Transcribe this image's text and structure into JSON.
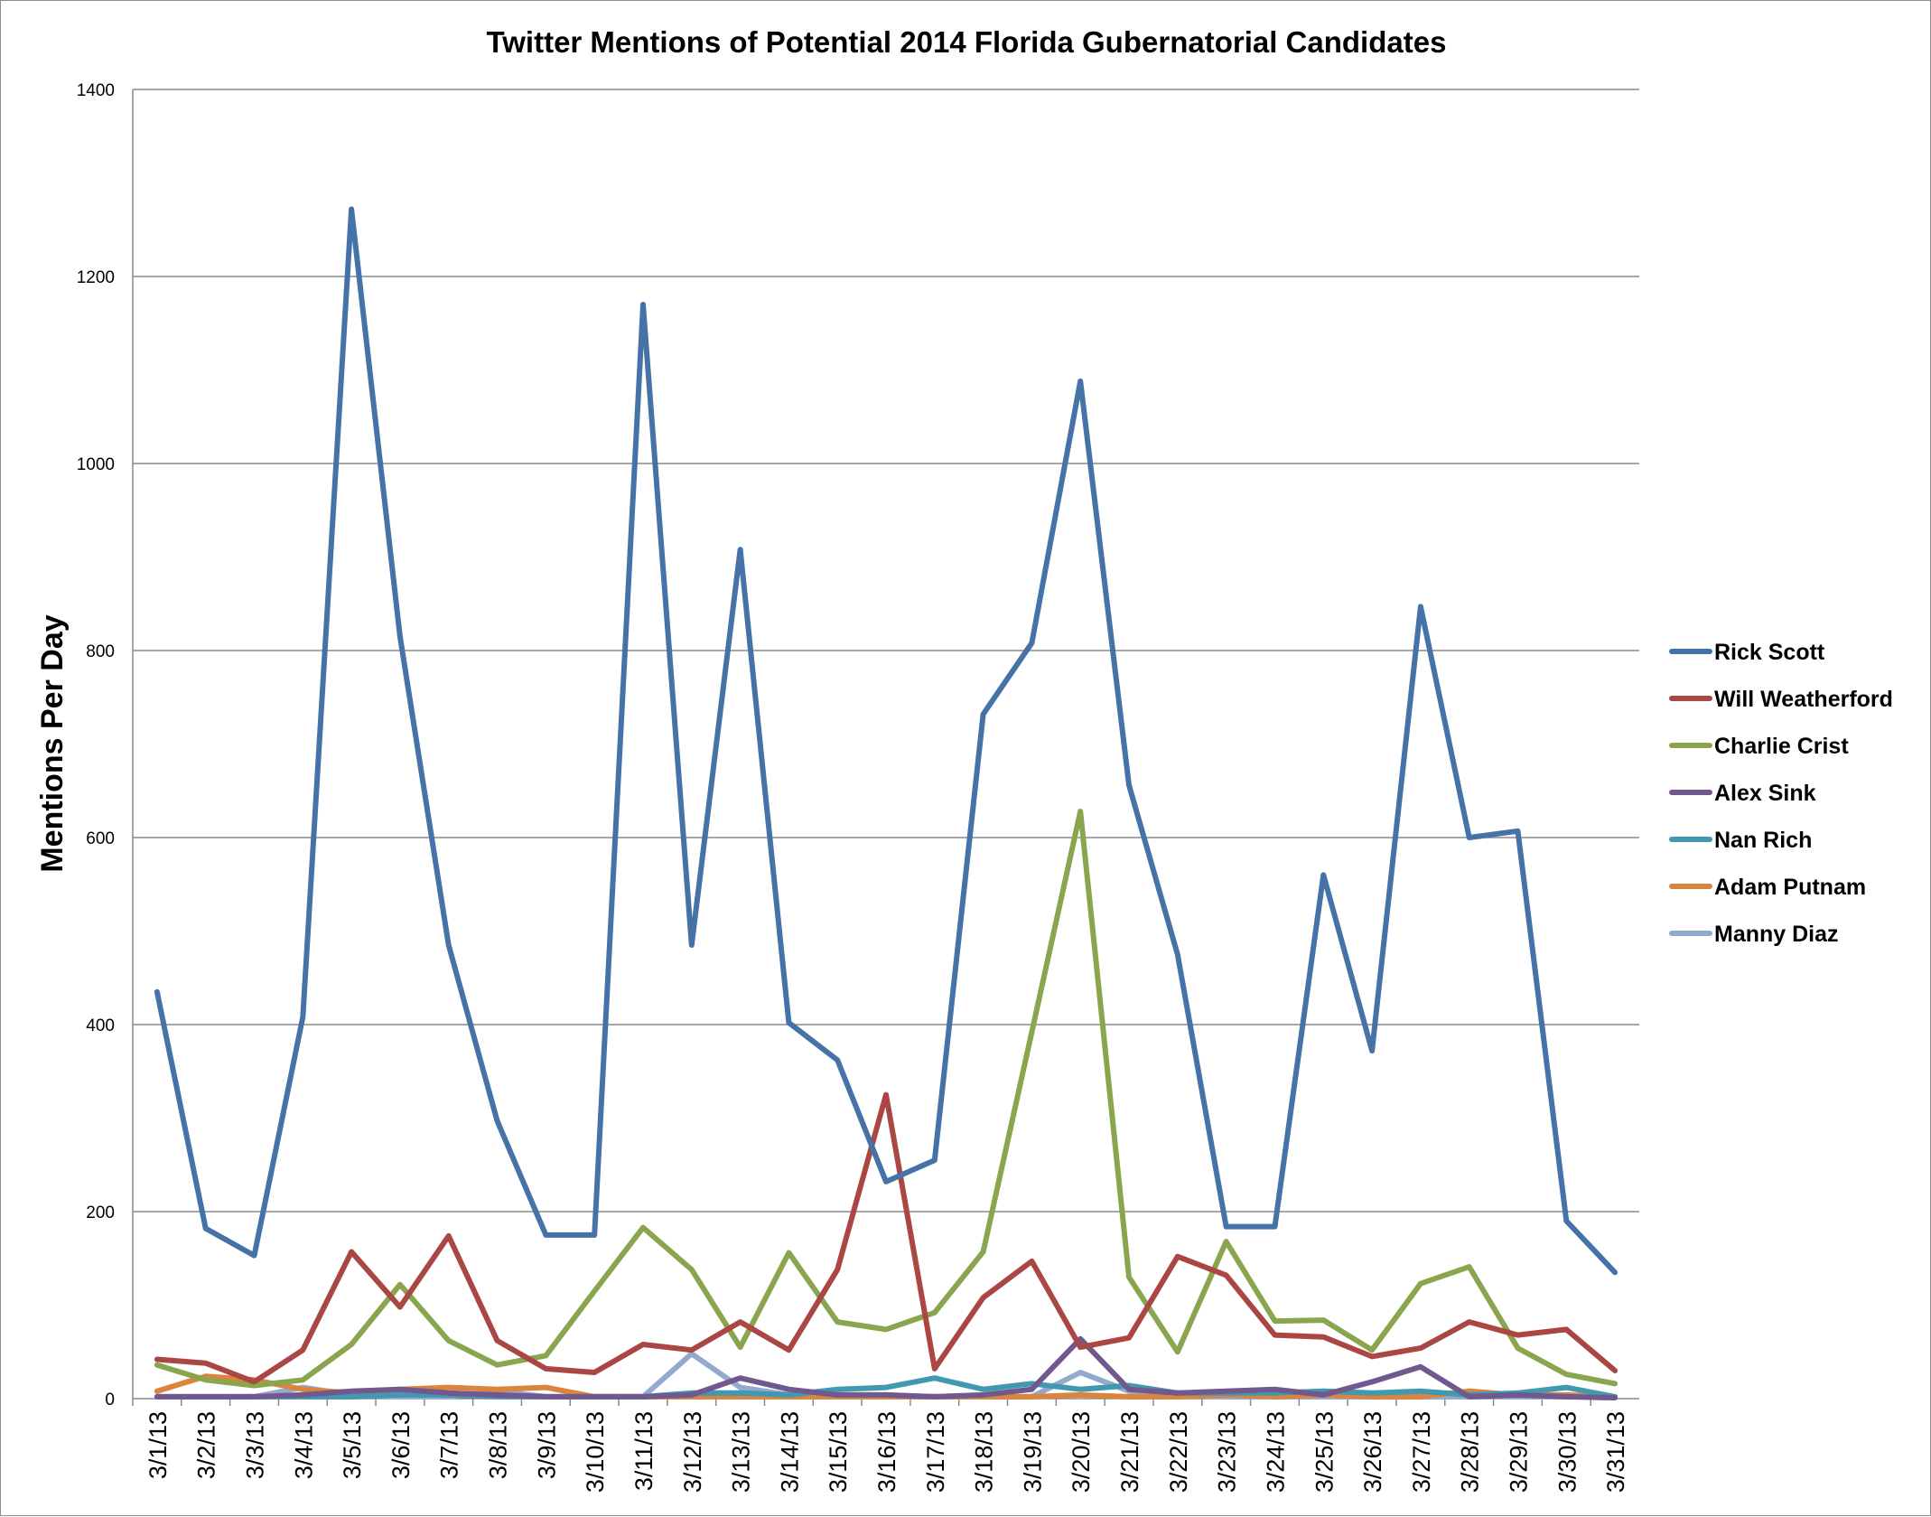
{
  "chart_data": {
    "type": "line",
    "title": "Twitter Mentions of Potential 2014 Florida Gubernatorial Candidates",
    "ylabel": "Mentions Per Day",
    "xlabel": "",
    "ylim": [
      0,
      1400
    ],
    "yticks": [
      0,
      200,
      400,
      600,
      800,
      1000,
      1200,
      1400
    ],
    "grid": true,
    "legend_position": "right",
    "categories": [
      "3/1/13",
      "3/2/13",
      "3/3/13",
      "3/4/13",
      "3/5/13",
      "3/6/13",
      "3/7/13",
      "3/8/13",
      "3/9/13",
      "3/10/13",
      "3/11/13",
      "3/12/13",
      "3/13/13",
      "3/14/13",
      "3/15/13",
      "3/16/13",
      "3/17/13",
      "3/18/13",
      "3/19/13",
      "3/20/13",
      "3/21/13",
      "3/22/13",
      "3/23/13",
      "3/24/13",
      "3/25/13",
      "3/26/13",
      "3/27/13",
      "3/28/13",
      "3/29/13",
      "3/30/13",
      "3/31/13"
    ],
    "series": [
      {
        "name": "Rick Scott",
        "color": "#4572A7",
        "values": [
          435,
          182,
          153,
          408,
          1272,
          815,
          485,
          297,
          175,
          175,
          1170,
          485,
          908,
          402,
          362,
          232,
          255,
          732,
          808,
          1088,
          656,
          475,
          184,
          184,
          560,
          372,
          847,
          600,
          607,
          190,
          135
        ]
      },
      {
        "name": "Will Weatherford",
        "color": "#AA4643",
        "values": [
          42,
          38,
          18,
          52,
          157,
          98,
          174,
          62,
          32,
          28,
          58,
          52,
          82,
          52,
          138,
          325,
          32,
          108,
          147,
          55,
          65,
          152,
          132,
          68,
          66,
          45,
          54,
          82,
          68,
          74,
          30
        ]
      },
      {
        "name": "Charlie Crist",
        "color": "#89A54E",
        "values": [
          36,
          20,
          14,
          20,
          58,
          122,
          62,
          36,
          46,
          115,
          183,
          138,
          55,
          156,
          82,
          74,
          92,
          157,
          392,
          628,
          130,
          50,
          168,
          83,
          84,
          52,
          123,
          141,
          54,
          26,
          16
        ]
      },
      {
        "name": "Alex Sink",
        "color": "#71588F",
        "values": [
          2,
          2,
          2,
          4,
          8,
          10,
          6,
          4,
          2,
          2,
          2,
          4,
          22,
          10,
          4,
          4,
          2,
          4,
          10,
          64,
          10,
          6,
          8,
          10,
          4,
          18,
          34,
          2,
          4,
          2,
          1
        ]
      },
      {
        "name": "Nan Rich",
        "color": "#4198AF",
        "values": [
          2,
          2,
          2,
          2,
          2,
          4,
          4,
          2,
          2,
          2,
          2,
          6,
          6,
          4,
          10,
          12,
          22,
          10,
          16,
          10,
          14,
          6,
          6,
          6,
          8,
          6,
          8,
          4,
          6,
          12,
          2
        ]
      },
      {
        "name": "Adam Putnam",
        "color": "#DB843D",
        "values": [
          8,
          24,
          20,
          10,
          6,
          10,
          12,
          10,
          12,
          2,
          2,
          2,
          2,
          2,
          2,
          2,
          2,
          2,
          2,
          4,
          2,
          2,
          4,
          2,
          4,
          2,
          2,
          8,
          4,
          4,
          2
        ]
      },
      {
        "name": "Manny Diaz",
        "color": "#93A9CF",
        "values": [
          2,
          2,
          2,
          12,
          4,
          2,
          2,
          8,
          2,
          2,
          2,
          48,
          12,
          4,
          4,
          4,
          2,
          2,
          2,
          28,
          8,
          4,
          2,
          2,
          2,
          2,
          2,
          2,
          2,
          2,
          2
        ]
      }
    ]
  }
}
